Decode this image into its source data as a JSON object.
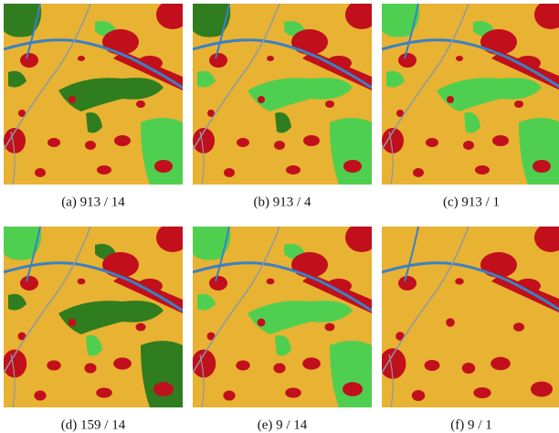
{
  "figure": {
    "panels": [
      {
        "caption": "(a) 913 / 14"
      },
      {
        "caption": "(b) 913 / 4"
      },
      {
        "caption": "(c) 913 / 1"
      },
      {
        "caption": "(d) 159 / 14"
      },
      {
        "caption": "(e) 9 / 14"
      },
      {
        "caption": "(f) 9 / 1"
      }
    ]
  }
}
